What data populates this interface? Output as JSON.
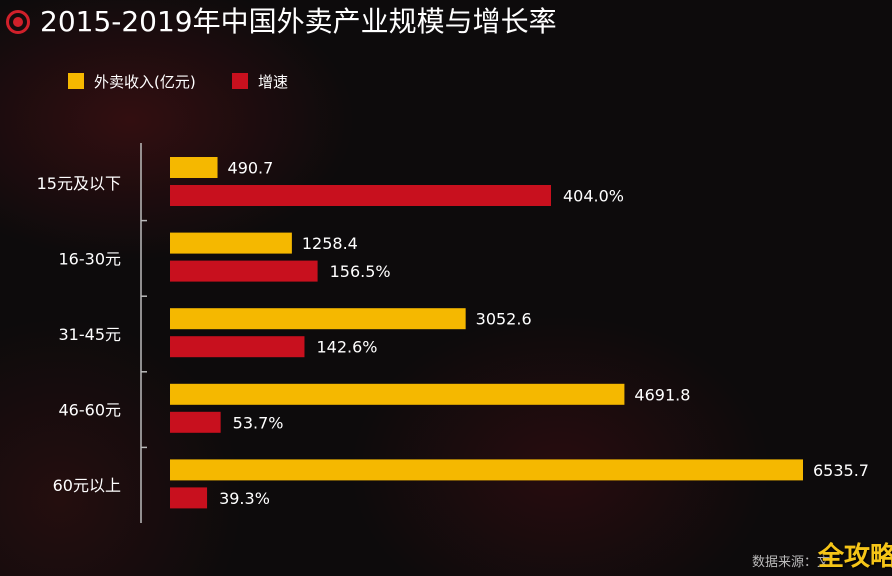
{
  "title": "2015-2019年中国外卖产业规模与增长率",
  "source": "数据来源：文",
  "watermark": "全攻略",
  "colors": {
    "income": "#f5b800",
    "growth": "#c8101e",
    "axis": "#bbbbbb",
    "background": "#0d0b0c",
    "accent": "#d0202a"
  },
  "chart_data": {
    "type": "bar",
    "orientation": "horizontal",
    "title": "2015-2019年中国外卖产业规模与增长率",
    "categories": [
      "15元及以下",
      "16-30元",
      "31-45元",
      "46-60元",
      "60元以上"
    ],
    "series": [
      {
        "name": "外卖收入(亿元)",
        "values": [
          490.7,
          1258.4,
          3052.6,
          4691.8,
          6535.7
        ],
        "labels": [
          "490.7",
          "1258.4",
          "3052.6",
          "4691.8",
          "6535.7"
        ]
      },
      {
        "name": "增速",
        "values": [
          404.0,
          156.5,
          142.6,
          53.7,
          39.3
        ],
        "labels": [
          "404.0%",
          "156.5%",
          "142.6%",
          "53.7%",
          "39.3%"
        ]
      }
    ],
    "legend_position": "top-left",
    "xlabel": "",
    "ylabel": ""
  }
}
